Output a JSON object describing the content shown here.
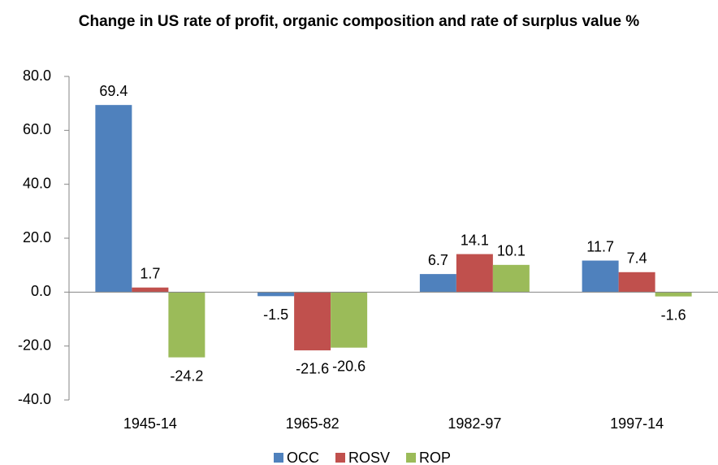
{
  "chart_data": {
    "type": "bar",
    "title": "Change in US rate of profit, organic composition and rate of surplus value %",
    "categories": [
      "1945-14",
      "1965-82",
      "1982-97",
      "1997-14"
    ],
    "series": [
      {
        "name": "OCC",
        "color": "#4f81bd",
        "values": [
          69.4,
          -1.5,
          6.7,
          11.7
        ]
      },
      {
        "name": "ROSV",
        "color": "#c0504d",
        "values": [
          1.7,
          -21.6,
          14.1,
          7.4
        ]
      },
      {
        "name": "ROP",
        "color": "#9bbb59",
        "values": [
          -24.2,
          -20.6,
          10.1,
          -1.6
        ]
      }
    ],
    "ylim": [
      -40,
      80
    ],
    "yticks": [
      {
        "value": -40,
        "label": "-40.0"
      },
      {
        "value": -20,
        "label": "-20.0"
      },
      {
        "value": 0,
        "label": "0.0"
      },
      {
        "value": 20,
        "label": "20.0"
      },
      {
        "value": 40,
        "label": "40.0"
      },
      {
        "value": 60,
        "label": "60.0"
      },
      {
        "value": 80,
        "label": "80.0"
      }
    ],
    "grid": false,
    "legend": "bottom"
  }
}
